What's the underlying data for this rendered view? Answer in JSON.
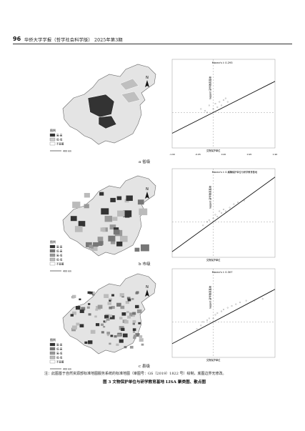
{
  "header": {
    "page_number": "96",
    "journal_title": "华侨大学学报（哲学社会科学版） 2025年第3期"
  },
  "panels": [
    {
      "caption": "a 省级",
      "legend_title": "图例",
      "legend_items": [
        "高-高",
        "低-低",
        "不显著"
      ],
      "legend_colors": [
        "#333333",
        "#cfcfcf",
        "#ffffff"
      ],
      "scale_label": "400 km",
      "scatter_title": "Moran's I: 0.293",
      "x_axis_label": "文物保护单位",
      "y_axis_label": "lagged 研学教育基地",
      "x_ticks": [
        "-1.90",
        "-0.95",
        "0.00",
        "0.95",
        "1.90"
      ],
      "chart_data": {
        "type": "scatter",
        "title": "Moran's I: 0.293",
        "xlabel": "文物保护单位",
        "ylabel": "lagged 研学教育基地",
        "x": [
          -0.6,
          -0.4,
          -0.2,
          0.0,
          0.1,
          0.2,
          0.3,
          0.4,
          0.5,
          0.7,
          -0.3,
          0.6
        ],
        "y": [
          0.1,
          0.05,
          0.2,
          0.1,
          0.25,
          0.15,
          0.3,
          0.2,
          0.35,
          0.3,
          0.0,
          0.4
        ],
        "fit_slope": 0.293
      }
    },
    {
      "caption": "b 市级",
      "legend_title": "图例",
      "legend_items": [
        "高-高",
        "低-高",
        "高-低",
        "低-低",
        "不显著"
      ],
      "legend_colors": [
        "#333333",
        "#777777",
        "#999999",
        "#bbbbbb",
        "#ffffff"
      ],
      "scale_label": "400 km",
      "scatter_title": "Moran's I: 0.421",
      "scatter_subtitle": "文物保护单位与研学教育基地",
      "x_axis_label": "文物保护单位",
      "y_axis_label": "lagged 研学教育基地",
      "chart_data": {
        "type": "scatter",
        "title": "Moran's I: 0.421",
        "xlabel": "文物保护单位",
        "ylabel": "lagged 研学教育基地",
        "x": [
          -0.5,
          -0.3,
          -0.2,
          0.0,
          0.1,
          0.2,
          0.3,
          0.4,
          0.5,
          0.6,
          0.8,
          1.0,
          1.2,
          1.5
        ],
        "y": [
          -0.1,
          0.0,
          0.05,
          0.1,
          0.2,
          0.15,
          0.3,
          0.25,
          0.35,
          0.3,
          0.4,
          0.5,
          0.55,
          0.6
        ],
        "fit_slope": 0.421
      }
    },
    {
      "caption": "c 县级",
      "legend_title": "图例",
      "legend_items": [
        "高-高",
        "低-高",
        "高-低",
        "低-低",
        "不显著"
      ],
      "legend_colors": [
        "#333333",
        "#777777",
        "#999999",
        "#bbbbbb",
        "#ffffff"
      ],
      "scale_label": "400 km",
      "scatter_title": "Moran's I: 0.307",
      "x_axis_label": "文物保护单位",
      "y_axis_label": "lagged 研学教育基地",
      "chart_data": {
        "type": "scatter",
        "title": "Moran's I: 0.307",
        "xlabel": "文物保护单位",
        "ylabel": "lagged 研学教育基地",
        "x": [
          -0.8,
          -0.6,
          -0.5,
          -0.3,
          -0.2,
          0.0,
          0.1,
          0.2,
          0.4,
          0.5,
          0.7,
          0.9,
          1.1,
          1.3,
          1.6,
          2.0,
          2.4
        ],
        "y": [
          -0.2,
          -0.1,
          0.0,
          0.05,
          0.1,
          0.1,
          0.2,
          0.25,
          0.3,
          0.35,
          0.4,
          0.45,
          0.5,
          0.55,
          0.6,
          0.6,
          0.65
        ],
        "fit_slope": 0.307
      }
    }
  ],
  "figure_note": "注：此图基于自然资源部标准地图服务系统的标准地图（审图号：GS（2019）1822 号）绘制，底图边界无修改。",
  "figure_title": "图 3   文物保护单位与研学教育基地 LISA 聚类图、散点图"
}
